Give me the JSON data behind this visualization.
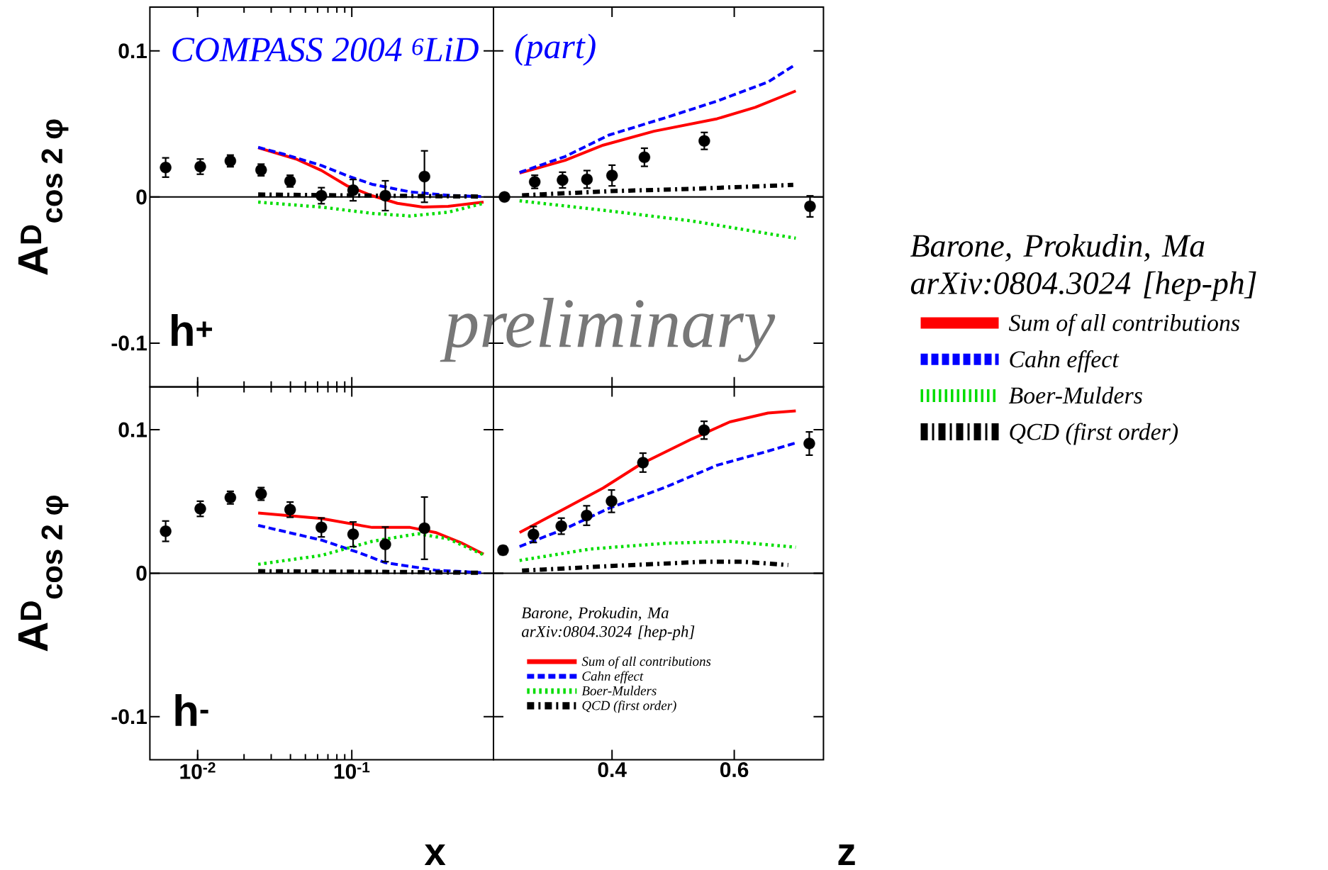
{
  "chart_data": [
    {
      "type": "line",
      "annotations": [
        "COMPASS 2004 $^{6}$LiD",
        "h$^{+}$",
        "preliminary"
      ],
      "ylabel": "A$^{D}$$_{cos 2 φ}$",
      "log": "x",
      "xlim": [
        0.0049,
        0.83
      ],
      "xticks": [
        0.01,
        0.1
      ],
      "ylim": [
        -0.13,
        0.13
      ],
      "yticks": [
        -0.1,
        0,
        0.1
      ],
      "tick_labels": "y",
      "ref_lines": [
        {
          "axis": "y",
          "value": 0
        }
      ],
      "series": [
        {
          "type": "line",
          "color": "#ff0000",
          "line_style": "solid",
          "x": [
            0.0247,
            0.0435,
            0.0635,
            0.0927,
            0.1355,
            0.1977,
            0.289,
            0.422,
            0.716
          ],
          "values": [
            0.0337,
            0.026,
            0.0182,
            0.0078,
            0.0009,
            -0.0043,
            -0.0069,
            -0.0064,
            -0.0035
          ]
        },
        {
          "type": "line",
          "color": "#0000ff",
          "line_style": "dashed",
          "x": [
            0.0247,
            0.036,
            0.0635,
            0.0927,
            0.1355,
            0.239,
            0.422,
            0.69
          ],
          "values": [
            0.034,
            0.0294,
            0.0216,
            0.0147,
            0.0087,
            0.0035,
            0.0012,
            0.0003
          ]
        },
        {
          "type": "line",
          "color": "#00dd00",
          "line_style": "dotted",
          "x": [
            0.0247,
            0.0635,
            0.1355,
            0.239,
            0.422,
            0.716
          ],
          "values": [
            -0.0035,
            -0.0069,
            -0.0112,
            -0.013,
            -0.0104,
            -0.0043
          ]
        },
        {
          "type": "line",
          "color": "#000000",
          "line_style": "dashdotted",
          "x": [
            0.0247,
            0.16,
            0.69
          ],
          "values": [
            0.0017,
            0.0009,
            0.0003
          ]
        },
        {
          "type": "scatter",
          "color": "#000000",
          "marker": "circle",
          "x": [
            0.0062,
            0.0104,
            0.0163,
            0.0258,
            0.0398,
            0.0635,
            0.102,
            0.165,
            0.296
          ],
          "values": [
            0.0202,
            0.0208,
            0.0247,
            0.0185,
            0.0109,
            0.0009,
            0.0047,
            0.0009,
            0.014
          ],
          "errors": [
            0.0066,
            0.0052,
            0.004,
            0.004,
            0.004,
            0.0055,
            0.0073,
            0.0102,
            0.0176
          ]
        }
      ]
    },
    {
      "type": "line",
      "annotations": [
        "(part)"
      ],
      "legend": "right",
      "legend_title": "Barone, Prokudin, Ma arXiv:0804.3024 [hep-ph]",
      "xlim": [
        0.206,
        0.746
      ],
      "xticks": [
        0.4,
        0.6
      ],
      "ylim": [
        -0.13,
        0.13
      ],
      "yticks": [
        -0.1,
        0,
        0.1
      ],
      "tick_labels": false,
      "ref_lines": [
        {
          "axis": "y",
          "value": 0
        }
      ],
      "series": [
        {
          "type": "line",
          "name": "Sum of all contributions",
          "color": "#ff0000",
          "line_style": "solid",
          "x": [
            0.2487,
            0.3232,
            0.3855,
            0.4684,
            0.5721,
            0.6344,
            0.7007
          ],
          "values": [
            0.0164,
            0.0251,
            0.0355,
            0.045,
            0.0536,
            0.0614,
            0.0726
          ]
        },
        {
          "type": "line",
          "name": "Cahn effect",
          "color": "#0000ff",
          "line_style": "dashed",
          "x": [
            0.2487,
            0.3232,
            0.3948,
            0.4892,
            0.5721,
            0.6552,
            0.7007
          ],
          "values": [
            0.0168,
            0.0277,
            0.0424,
            0.0545,
            0.0657,
            0.0787,
            0.0908
          ]
        },
        {
          "type": "line",
          "name": "Boer-Mulders",
          "color": "#00dd00",
          "line_style": "dotted",
          "x": [
            0.2487,
            0.3948,
            0.5307,
            0.7007
          ],
          "values": [
            -0.0026,
            -0.0095,
            -0.0164,
            -0.0282
          ]
        },
        {
          "type": "line",
          "name": "QCD (first order)",
          "color": "#000000",
          "line_style": "dashdotted",
          "x": [
            0.2527,
            0.3979,
            0.539,
            0.6966
          ],
          "values": [
            0.0012,
            0.004,
            0.0057,
            0.0083
          ]
        },
        {
          "type": "scatter",
          "color": "#000000",
          "marker": "circle",
          "x": [
            0.224,
            0.2735,
            0.319,
            0.359,
            0.4,
            0.453,
            0.551,
            0.724
          ],
          "values": [
            0,
            0.0104,
            0.0116,
            0.0121,
            0.0147,
            0.0272,
            0.0384,
            -0.0064
          ],
          "errors": [
            null,
            0.0045,
            0.0054,
            0.006,
            0.0071,
            0.0062,
            0.0058,
            0.0072
          ]
        }
      ]
    },
    {
      "type": "line",
      "annotations": [
        "h$^{-}$"
      ],
      "xlabel": "x",
      "ylabel": "A$^{D}$$_{cos 2 φ}$",
      "log": "x",
      "xlim": [
        0.0049,
        0.83
      ],
      "xticks": [
        {
          "value": 0.01,
          "label": "10$^{-2}$"
        },
        {
          "value": 0.1,
          "label": "10$^{-1}$"
        }
      ],
      "ylim": [
        -0.13,
        0.13
      ],
      "yticks": [
        -0.1,
        0,
        0.1
      ],
      "ref_lines": [
        {
          "axis": "y",
          "value": 0
        }
      ],
      "series": [
        {
          "type": "line",
          "color": "#ff0000",
          "line_style": "solid",
          "x": [
            0.0247,
            0.0635,
            0.1355,
            0.239,
            0.349,
            0.51,
            0.716
          ],
          "values": [
            0.042,
            0.0381,
            0.0319,
            0.0319,
            0.0284,
            0.0213,
            0.0133
          ]
        },
        {
          "type": "line",
          "color": "#0000ff",
          "line_style": "dashed",
          "x": [
            0.0247,
            0.0635,
            0.112,
            0.164,
            0.349,
            0.69
          ],
          "values": [
            0.0333,
            0.0231,
            0.0142,
            0.0074,
            0.0021,
            0.0004
          ]
        },
        {
          "type": "line",
          "color": "#00dd00",
          "line_style": "dotted",
          "x": [
            0.0247,
            0.0635,
            0.1355,
            0.268,
            0.422,
            0.716
          ],
          "values": [
            0.0062,
            0.0124,
            0.0222,
            0.0275,
            0.024,
            0.0128
          ]
        },
        {
          "type": "line",
          "color": "#000000",
          "line_style": "dashdotted",
          "x": [
            0.0247,
            0.164,
            0.69
          ],
          "values": [
            0.0014,
            0.0009,
            0.0003
          ]
        },
        {
          "type": "scatter",
          "color": "#000000",
          "marker": "circle",
          "x": [
            0.0062,
            0.0104,
            0.0163,
            0.0258,
            0.0398,
            0.0635,
            0.102,
            0.165,
            0.296
          ],
          "values": [
            0.0293,
            0.0449,
            0.0527,
            0.0553,
            0.0443,
            0.0319,
            0.0271,
            0.0201,
            0.0314
          ],
          "errors": [
            0.0071,
            0.0053,
            0.0044,
            0.0044,
            0.0053,
            0.0066,
            0.0086,
            0.0121,
            0.0217
          ]
        }
      ]
    },
    {
      "type": "line",
      "xlabel": "z",
      "legend": "bottom left",
      "legend_title": "Barone, Prokudin, Ma arXiv:0804.3024 [hep-ph]",
      "xlim": [
        0.206,
        0.746
      ],
      "xticks": [
        0.4,
        0.6
      ],
      "ylim": [
        -0.13,
        0.13
      ],
      "yticks": [
        -0.1,
        0,
        0.1
      ],
      "tick_labels": "x",
      "ref_lines": [
        {
          "axis": "y",
          "value": 0
        }
      ],
      "series": [
        {
          "type": "line",
          "name": "Sum of all contributions",
          "color": "#ff0000",
          "line_style": "solid",
          "x": [
            0.2487,
            0.3232,
            0.3855,
            0.4477,
            0.5307,
            0.5929,
            0.6552,
            0.7007
          ],
          "values": [
            0.0284,
            0.0452,
            0.0594,
            0.0762,
            0.0936,
            0.1055,
            0.1117,
            0.1131
          ]
        },
        {
          "type": "line",
          "name": "Cahn effect",
          "color": "#0000ff",
          "line_style": "dashed",
          "x": [
            0.2487,
            0.3232,
            0.3948,
            0.4892,
            0.5721,
            0.6552,
            0.7007
          ],
          "values": [
            0.0186,
            0.031,
            0.0452,
            0.0603,
            0.0753,
            0.0851,
            0.0908
          ]
        },
        {
          "type": "line",
          "name": "Boer-Mulders",
          "color": "#00dd00",
          "line_style": "dotted",
          "x": [
            0.2487,
            0.3648,
            0.4892,
            0.5929,
            0.7007
          ],
          "values": [
            0.0089,
            0.0169,
            0.0209,
            0.0222,
            0.0181
          ]
        },
        {
          "type": "line",
          "name": "QCD (first order)",
          "color": "#000000",
          "line_style": "dashdotted",
          "x": [
            0.2527,
            0.3979,
            0.5515,
            0.6136,
            0.6883
          ],
          "values": [
            0.0018,
            0.005,
            0.008,
            0.008,
            0.0057
          ]
        },
        {
          "type": "scatter",
          "color": "#000000",
          "marker": "circle",
          "x": [
            0.2216,
            0.2714,
            0.317,
            0.3585,
            0.3992,
            0.4506,
            0.5506,
            0.7228
          ],
          "values": [
            0.016,
            0.027,
            0.0328,
            0.0402,
            0.0502,
            0.0771,
            0.0997,
            0.0904
          ],
          "errors": [
            0.003,
            0.0056,
            0.0056,
            0.0068,
            0.0078,
            0.0066,
            0.0062,
            0.0081
          ]
        }
      ]
    }
  ]
}
